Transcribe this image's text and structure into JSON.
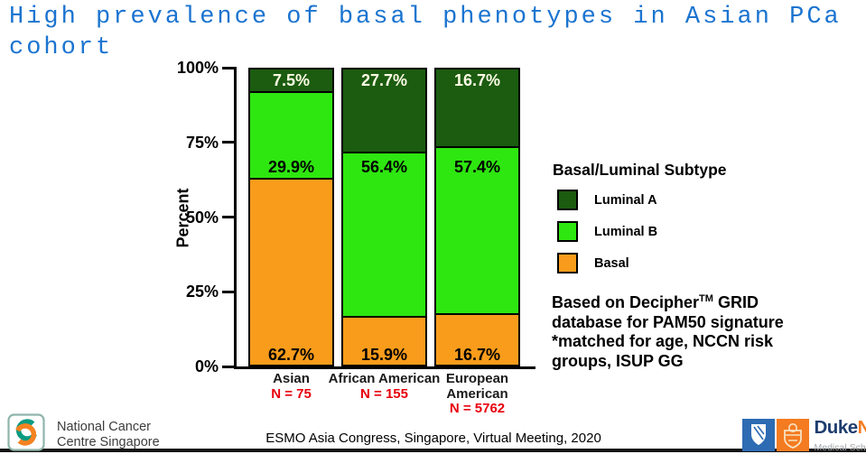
{
  "title": {
    "line1": "High prevalence of basal phenotypes in Asian PCa",
    "line2": "cohort"
  },
  "chart_data": {
    "type": "bar",
    "stacked": true,
    "ylabel": "Percent",
    "ylim": [
      0,
      100
    ],
    "grid": false,
    "legend_position": "right",
    "yticks": [
      {
        "value": 0,
        "label": "0%"
      },
      {
        "value": 25,
        "label": "25%"
      },
      {
        "value": 50,
        "label": "50%"
      },
      {
        "value": 75,
        "label": "75%"
      },
      {
        "value": 100,
        "label": "100%"
      }
    ],
    "categories": [
      "Asian",
      "African American",
      "European American"
    ],
    "n_labels": [
      "N = 75",
      "N = 155",
      "N = 5762"
    ],
    "legend_title": "Basal/Luminal Subtype",
    "series": [
      {
        "name": "Luminal A",
        "color": "#1b5c10",
        "label_color": "#fdfbe4",
        "values": [
          7.5,
          27.7,
          16.7
        ],
        "labels": [
          "7.5%",
          "27.7%",
          "16.7%"
        ]
      },
      {
        "name": "Luminal B",
        "color": "#2ee610",
        "label_color": "#000000",
        "values": [
          29.9,
          56.4,
          57.4
        ],
        "labels": [
          "29.9%",
          "56.4%",
          "57.4%"
        ]
      },
      {
        "name": "Basal",
        "color": "#f99c1b",
        "label_color": "#000000",
        "values": [
          62.7,
          15.9,
          16.7
        ],
        "labels": [
          "62.7%",
          "15.9%",
          "16.7%"
        ]
      }
    ]
  },
  "note": {
    "line1_pre": "Based on Decipher",
    "line1_sup": "TM",
    "line1_post": " GRID",
    "line2": "database for PAM50 signature",
    "line3": "*matched for age, NCCN risk",
    "line4": "groups, ISUP GG"
  },
  "footer": {
    "conference": "ESMO Asia Congress, Singapore, Virtual Meeting, 2020"
  },
  "logos": {
    "nccs": {
      "line1": "National Cancer",
      "line2": "Centre Singapore"
    },
    "dukenus": {
      "duke": "Duke",
      "nus": "NUS",
      "subtitle": "Medical School"
    }
  },
  "colors": {
    "title_blue": "#1b74d0",
    "n_label_red": "#e8000d",
    "luminal_a_green": "#1b5c10",
    "luminal_b_green": "#2ee610",
    "basal_orange": "#f99c1b",
    "nccs_teal": "#0a9b80",
    "nccs_orange": "#f58220",
    "duke_navy": "#1d3d6e",
    "nus_orange": "#f47b20"
  }
}
